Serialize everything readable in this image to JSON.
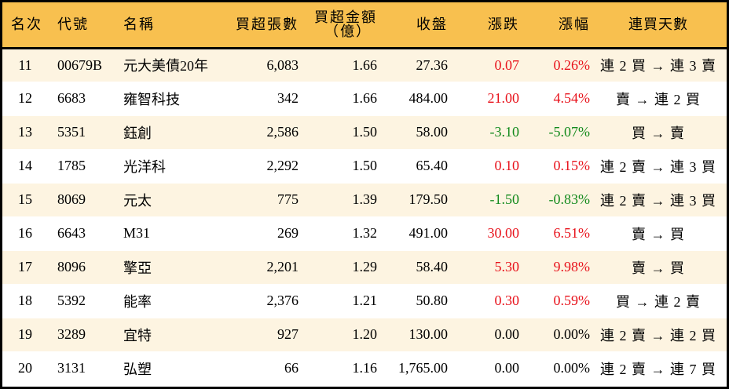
{
  "table": {
    "headers": {
      "rank": "名次",
      "code": "代號",
      "name": "名稱",
      "net_buy_lots": "買超張數",
      "net_buy_amount_line1": "買超金額",
      "net_buy_amount_line2": "（億）",
      "close": "收盤",
      "change": "漲跌",
      "change_pct": "漲幅",
      "streak": "連買天數"
    },
    "colors": {
      "header_bg": "#f8c04f",
      "row_odd_bg": "#fdf4e1",
      "row_even_bg": "#ffffff",
      "up": "#e8131c",
      "down": "#138a1c"
    },
    "rows": [
      {
        "rank": "11",
        "code": "00679B",
        "name": "元大美債20年",
        "lots": "6,083",
        "amount": "1.66",
        "close": "27.36",
        "change": "0.07",
        "pct": "0.26%",
        "dir": "up",
        "streak": "連 2 買 → 連 3 賣"
      },
      {
        "rank": "12",
        "code": "6683",
        "name": "雍智科技",
        "lots": "342",
        "amount": "1.66",
        "close": "484.00",
        "change": "21.00",
        "pct": "4.54%",
        "dir": "up",
        "streak": "賣 → 連 2 買"
      },
      {
        "rank": "13",
        "code": "5351",
        "name": "鈺創",
        "lots": "2,586",
        "amount": "1.50",
        "close": "58.00",
        "change": "-3.10",
        "pct": "-5.07%",
        "dir": "down",
        "streak": "買 → 賣"
      },
      {
        "rank": "14",
        "code": "1785",
        "name": "光洋科",
        "lots": "2,292",
        "amount": "1.50",
        "close": "65.40",
        "change": "0.10",
        "pct": "0.15%",
        "dir": "up",
        "streak": "連 2 賣 → 連 3 買"
      },
      {
        "rank": "15",
        "code": "8069",
        "name": "元太",
        "lots": "775",
        "amount": "1.39",
        "close": "179.50",
        "change": "-1.50",
        "pct": "-0.83%",
        "dir": "down",
        "streak": "連 2 賣 → 連 3 買"
      },
      {
        "rank": "16",
        "code": "6643",
        "name": "M31",
        "lots": "269",
        "amount": "1.32",
        "close": "491.00",
        "change": "30.00",
        "pct": "6.51%",
        "dir": "up",
        "streak": "賣 → 買"
      },
      {
        "rank": "17",
        "code": "8096",
        "name": "擎亞",
        "lots": "2,201",
        "amount": "1.29",
        "close": "58.40",
        "change": "5.30",
        "pct": "9.98%",
        "dir": "up",
        "streak": "賣 → 買"
      },
      {
        "rank": "18",
        "code": "5392",
        "name": "能率",
        "lots": "2,376",
        "amount": "1.21",
        "close": "50.80",
        "change": "0.30",
        "pct": "0.59%",
        "dir": "up",
        "streak": "買 → 連 2 賣"
      },
      {
        "rank": "19",
        "code": "3289",
        "name": "宜特",
        "lots": "927",
        "amount": "1.20",
        "close": "130.00",
        "change": "0.00",
        "pct": "0.00%",
        "dir": "flat",
        "streak": "連 2 賣 → 連 2 買"
      },
      {
        "rank": "20",
        "code": "3131",
        "name": "弘塑",
        "lots": "66",
        "amount": "1.16",
        "close": "1,765.00",
        "change": "0.00",
        "pct": "0.00%",
        "dir": "flat",
        "streak": "連 2 賣 → 連 7 買"
      }
    ]
  }
}
